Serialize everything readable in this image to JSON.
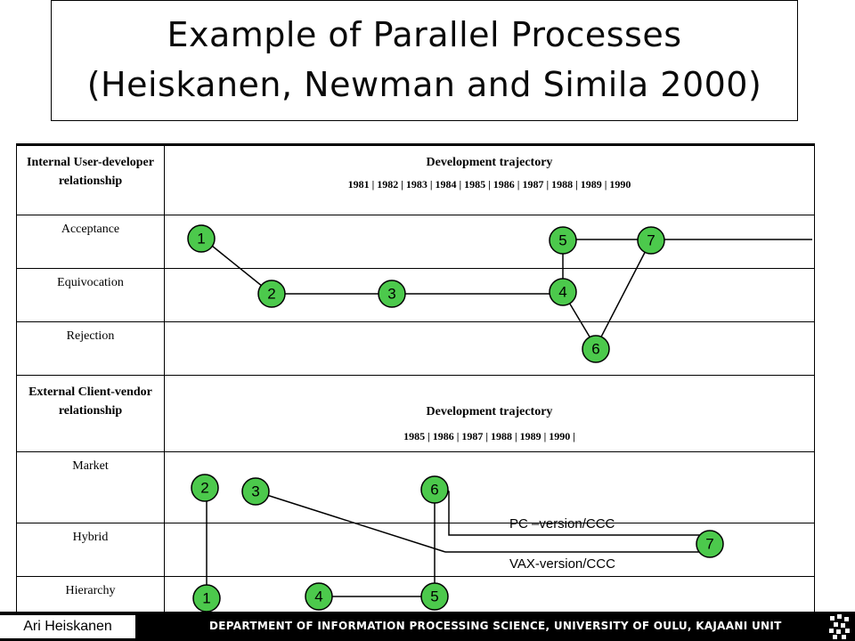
{
  "title": {
    "line1": "Example of Parallel Processes",
    "line2": "(Heiskanen, Newman and Simila 2000)"
  },
  "internal": {
    "header_label": "Internal User-developer relationship",
    "trajectory_label": "Development trajectory",
    "years_text": "1981   |  1982   |  1983   |  1984   |  1985   |  1986   |  1987   |  1988   |  1989  | 1990",
    "rows": [
      "Acceptance",
      "Equivocation",
      "Rejection"
    ],
    "nodes": [
      {
        "id": "1",
        "row": "Acceptance"
      },
      {
        "id": "2",
        "row": "Equivocation"
      },
      {
        "id": "3",
        "row": "Equivocation"
      },
      {
        "id": "4",
        "row": "Equivocation"
      },
      {
        "id": "5",
        "row": "Acceptance"
      },
      {
        "id": "6",
        "row": "Rejection"
      },
      {
        "id": "7",
        "row": "Acceptance"
      }
    ]
  },
  "external": {
    "header_label": "External Client-vendor relationship",
    "trajectory_label": "Development trajectory",
    "years_text": "1985       |      1986       |       1987       |      1988       |      1989       |       1990      |",
    "rows": [
      "Market",
      "Hybrid",
      "Hierarchy"
    ],
    "nodes": [
      {
        "id": "1",
        "row": "Hierarchy"
      },
      {
        "id": "2",
        "row": "Market"
      },
      {
        "id": "3",
        "row": "Market"
      },
      {
        "id": "4",
        "row": "Hierarchy"
      },
      {
        "id": "5",
        "row": "Hierarchy"
      },
      {
        "id": "6",
        "row": "Market"
      },
      {
        "id": "7",
        "row": "Hybrid"
      }
    ],
    "annotations": {
      "pc": "PC –version/CCC",
      "vax": "VAX-version/CCC"
    }
  },
  "colors": {
    "node_fill": "#4cc94c",
    "line": "#000000",
    "footer_bg": "#000000"
  },
  "footer": {
    "author": "Ari Heiskanen",
    "department": "DEPARTMENT OF INFORMATION PROCESSING SCIENCE, UNIVERSITY OF  OULU, KAJAANI UNIT",
    "logo_icon": "university-logo-icon"
  }
}
